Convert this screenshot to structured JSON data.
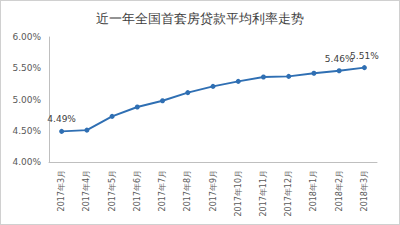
{
  "chart_data": {
    "type": "line",
    "title": "近一年全国首套房贷款平均利率走势",
    "categories": [
      "2017年3月",
      "2017年4月",
      "2017年5月",
      "2017年6月",
      "2017年7月",
      "2017年8月",
      "2017年9月",
      "2017年10月",
      "2017年11月",
      "2017年12月",
      "2018年1月",
      "2018年2月",
      "2018年3月"
    ],
    "values": [
      4.49,
      4.51,
      4.73,
      4.88,
      4.98,
      5.11,
      5.21,
      5.29,
      5.36,
      5.37,
      5.42,
      5.46,
      5.51
    ],
    "value_labels": [
      "4.49%",
      null,
      null,
      null,
      null,
      null,
      null,
      null,
      null,
      null,
      null,
      "5.46%",
      "5.51%"
    ],
    "data_labels": true,
    "color": "#2f6fb3",
    "marker": "circle",
    "ylim": [
      4,
      6
    ],
    "yticks": [
      {
        "value": 4,
        "label": "4.00%"
      },
      {
        "value": 4.5,
        "label": "4.50%"
      },
      {
        "value": 5,
        "label": "5.00%"
      },
      {
        "value": 5.5,
        "label": "5.50%"
      },
      {
        "value": 6,
        "label": "6.00%"
      }
    ],
    "grid": false
  }
}
